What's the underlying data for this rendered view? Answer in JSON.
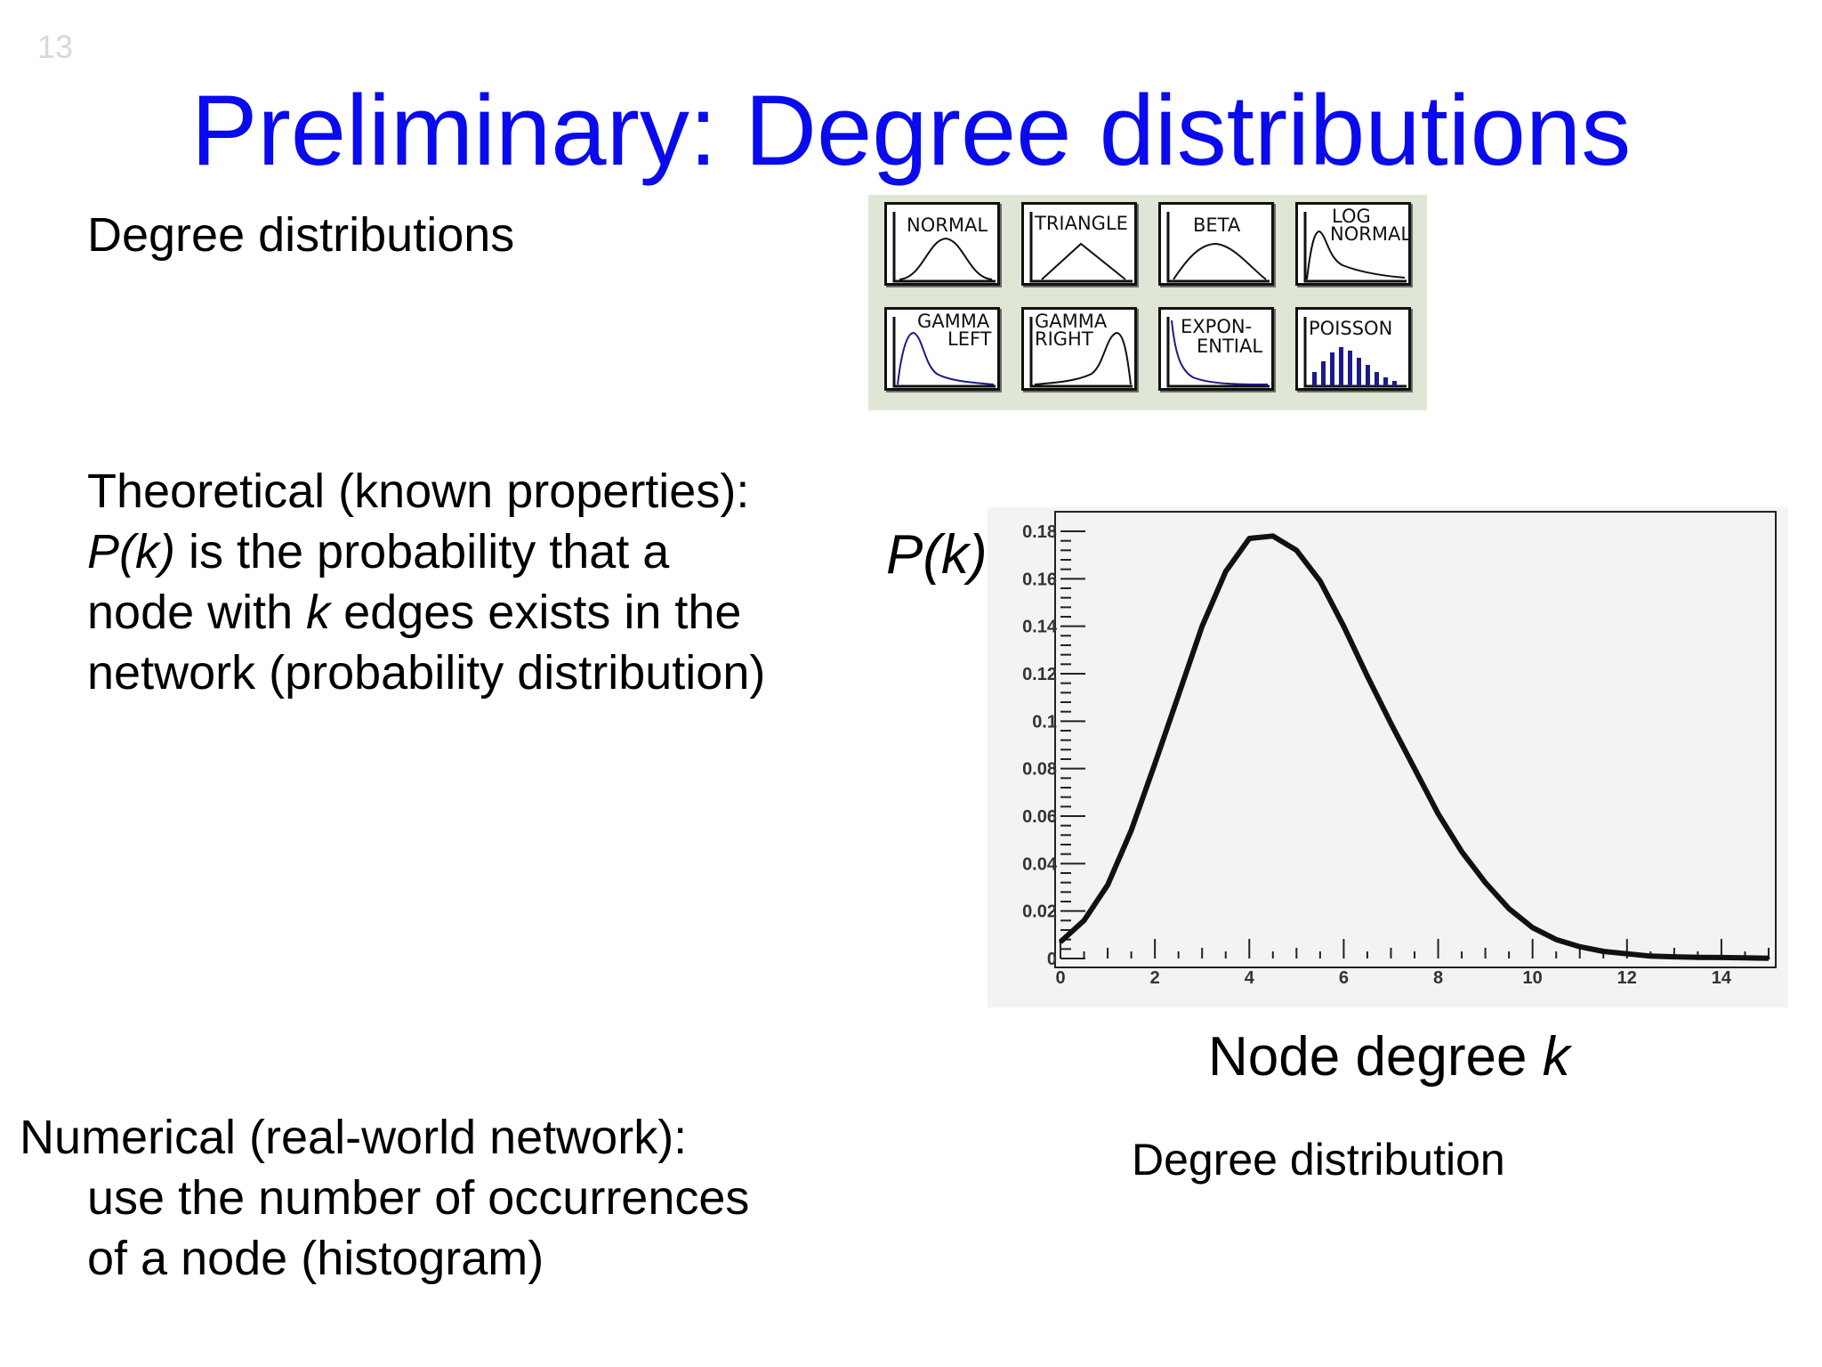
{
  "slide": {
    "number": "13",
    "title": "Preliminary: Degree distributions",
    "degree_heading": "Degree distributions",
    "theory": {
      "line1": "Theoretical (known properties):",
      "pk": "P(k)",
      "line2_rest": " is the probability that a",
      "line3_a": "node with ",
      "k": "k",
      "line3_b": " edges exists in the",
      "line4": "network (probability distribution)"
    },
    "numerical": {
      "line1": "Numerical (real-world network):",
      "line2": "use the number of occurrences",
      "line3": "of a node (histogram)"
    },
    "caption": "Degree distribution"
  },
  "palette": {
    "tiles": [
      {
        "label1": "NORMAL",
        "label2": "",
        "icon": "normal-distribution-icon"
      },
      {
        "label1": "TRIANGLE",
        "label2": "",
        "icon": "triangle-distribution-icon"
      },
      {
        "label1": "BETA",
        "label2": "",
        "icon": "beta-distribution-icon"
      },
      {
        "label1": "LOG",
        "label2": "NORMAL",
        "icon": "lognormal-distribution-icon"
      },
      {
        "label1": "GAMMA",
        "label2": "LEFT",
        "icon": "gamma-left-distribution-icon"
      },
      {
        "label1": "GAMMA",
        "label2": "RIGHT",
        "icon": "gamma-right-distribution-icon"
      },
      {
        "label1": "EXPON-",
        "label2": "ENTIAL",
        "icon": "exponential-distribution-icon"
      },
      {
        "label1": "POISSON",
        "label2": "",
        "icon": "poisson-distribution-icon"
      }
    ],
    "accent_color": "#1a1a8c"
  },
  "chart_data": {
    "type": "line",
    "ylabel": "P(k)",
    "xlabel_text": "Node degree ",
    "xlabel_var": "k",
    "xlim": [
      0,
      15
    ],
    "ylim": [
      0,
      0.18
    ],
    "xticks": [
      0,
      2,
      4,
      6,
      8,
      10,
      12,
      14
    ],
    "yticks": [
      0,
      0.02,
      0.04,
      0.06,
      0.08,
      0.1,
      0.12,
      0.14,
      0.16,
      0.18
    ],
    "ytick_labels": [
      "0",
      "0.02",
      "0.04",
      "0.06",
      "0.08",
      "0.1",
      "0.12",
      "0.14",
      "0.16",
      "0.18"
    ],
    "grid": false,
    "line_color": "#111111",
    "background": "#f3f2f4",
    "series": [
      {
        "x": [
          0,
          0.5,
          1,
          1.5,
          2,
          2.5,
          3,
          3.5,
          4,
          4.5,
          5,
          5.5,
          6,
          6.5,
          7,
          7.5,
          8,
          8.5,
          9,
          9.5,
          10,
          10.5,
          11,
          11.5,
          12,
          12.5,
          13,
          13.5,
          14,
          14.5,
          15
        ],
        "y": [
          0.007,
          0.016,
          0.031,
          0.054,
          0.082,
          0.111,
          0.14,
          0.163,
          0.177,
          0.178,
          0.172,
          0.159,
          0.14,
          0.119,
          0.099,
          0.08,
          0.061,
          0.045,
          0.032,
          0.021,
          0.013,
          0.008,
          0.005,
          0.003,
          0.002,
          0.001,
          0.0007,
          0.0005,
          0.0004,
          0.0003,
          0.0001
        ]
      }
    ]
  }
}
